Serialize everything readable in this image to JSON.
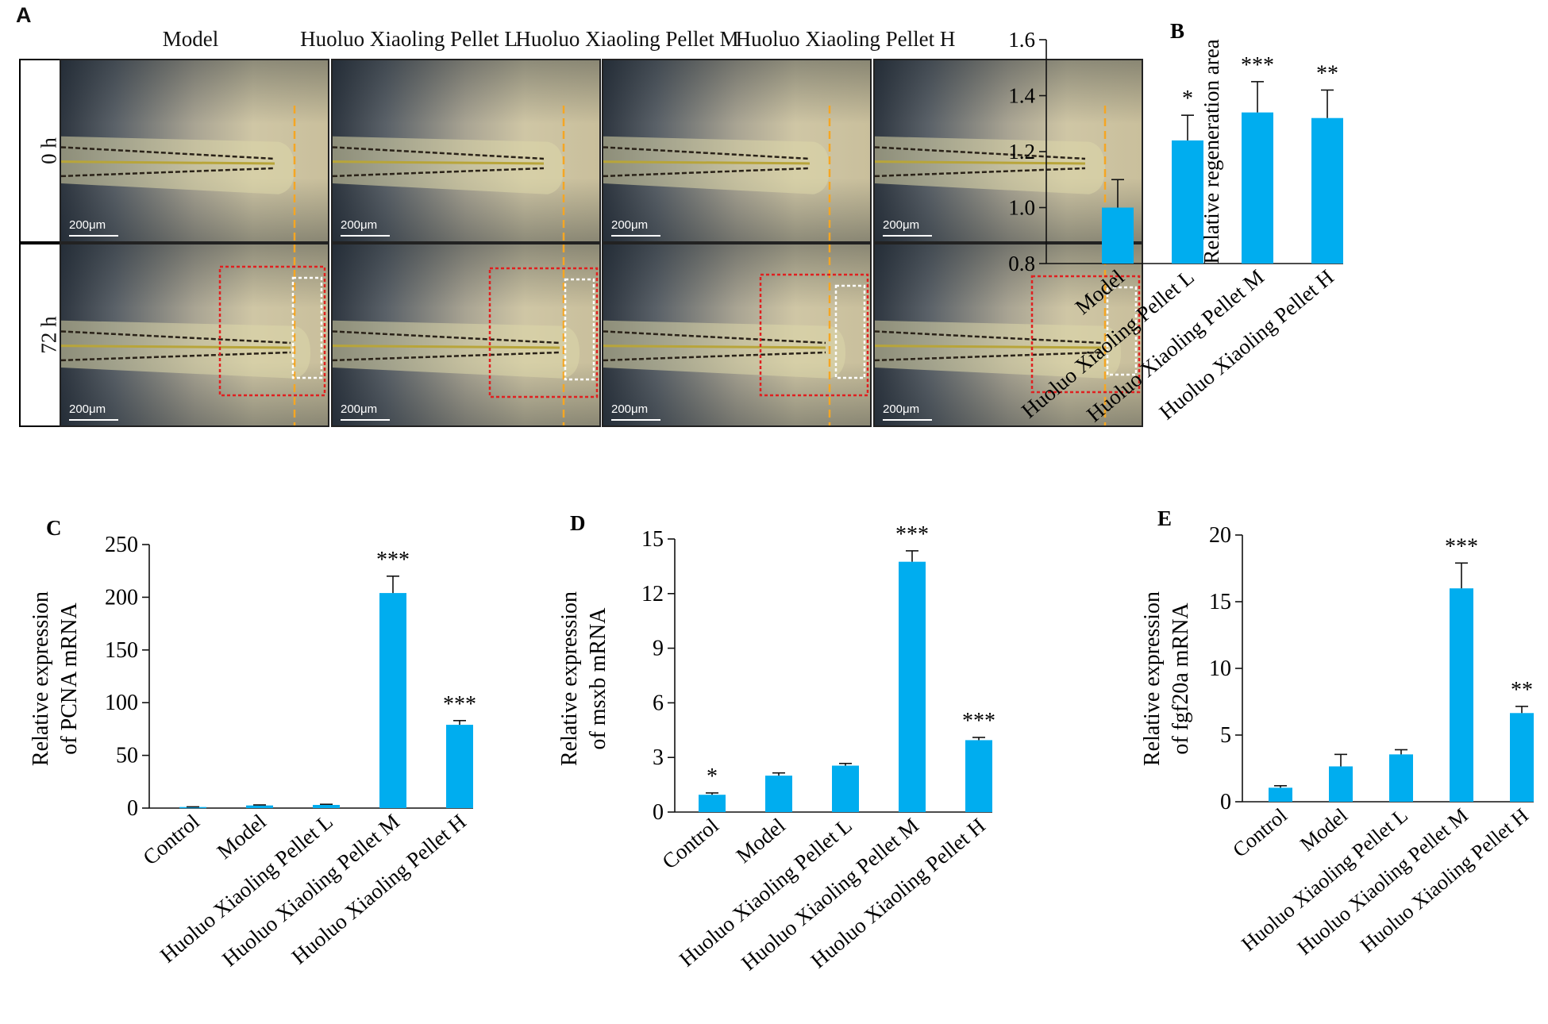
{
  "panel_a": {
    "letter": "A",
    "columns": [
      "Model",
      "Huoluo Xiaoling Pellet L",
      "Huoluo Xiaoling Pellet M",
      "Huoluo Xiaoling Pellet H"
    ],
    "rows": [
      "0 h",
      "72 h"
    ],
    "scale_label": "200μm",
    "colors": {
      "cut_line": "#f5a623",
      "region_box": "#e02020",
      "blastema_box": "#ffffff"
    }
  },
  "chart_data": [
    {
      "id": "B",
      "letter": "B",
      "type": "bar",
      "categories": [
        "Model",
        "Huoluo Xiaoling Pellet L",
        "Huoluo Xiaoling Pellet M",
        "Huoluo Xiaoling Pellet H"
      ],
      "values": [
        1.0,
        1.24,
        1.34,
        1.32
      ],
      "errors": [
        0.1,
        0.09,
        0.11,
        0.1
      ],
      "significance": [
        "",
        "*",
        "***",
        "**"
      ],
      "ylabel": "Relative regeneration area",
      "xlabel": "",
      "ylim": [
        0.8,
        1.6
      ],
      "yticks": [
        "0.8",
        "1.0",
        "1.2",
        "1.4",
        "1.6"
      ],
      "bar_color": "#00adef"
    },
    {
      "id": "C",
      "letter": "C",
      "type": "bar",
      "categories": [
        "Control",
        "Model",
        "Huoluo Xiaoling Pellet L",
        "Huoluo Xiaoling Pellet M",
        "Huoluo Xiaoling Pellet H"
      ],
      "values": [
        1.0,
        2.5,
        3.0,
        204,
        79
      ],
      "errors": [
        0.2,
        0.5,
        0.6,
        16,
        4
      ],
      "significance": [
        "",
        "",
        "",
        "***",
        "***"
      ],
      "ylabel": [
        "Relative expression",
        "of PCNA mRNA"
      ],
      "xlabel": "",
      "ylim": [
        0,
        250
      ],
      "yticks": [
        "0",
        "50",
        "100",
        "150",
        "200",
        "250"
      ],
      "bar_color": "#00adef"
    },
    {
      "id": "D",
      "letter": "D",
      "type": "bar",
      "categories": [
        "Control",
        "Model",
        "Huoluo Xiaoling Pellet L",
        "Huoluo Xiaoling Pellet M",
        "Huoluo Xiaoling Pellet H"
      ],
      "values": [
        0.95,
        2.0,
        2.55,
        13.75,
        3.95
      ],
      "errors": [
        0.1,
        0.15,
        0.12,
        0.6,
        0.15
      ],
      "significance": [
        "*",
        "",
        "",
        "***",
        "***"
      ],
      "ylabel": [
        "Relative expression",
        "of msxb mRNA"
      ],
      "xlabel": "",
      "ylim": [
        0,
        15
      ],
      "yticks": [
        "0",
        "3",
        "6",
        "9",
        "12",
        "15"
      ],
      "bar_color": "#00adef"
    },
    {
      "id": "E",
      "letter": "E",
      "type": "bar",
      "categories": [
        "Control",
        "Model",
        "Huoluo Xiaoling Pellet L",
        "Huoluo Xiaoling Pellet M",
        "Huoluo Xiaoling Pellet H"
      ],
      "values": [
        1.05,
        2.65,
        3.55,
        16.0,
        6.65
      ],
      "errors": [
        0.15,
        0.9,
        0.35,
        1.9,
        0.5
      ],
      "significance": [
        "",
        "",
        "",
        "***",
        "**"
      ],
      "ylabel": [
        "Relative expression",
        "of fgf20a mRNA"
      ],
      "xlabel": "",
      "ylim": [
        0,
        20
      ],
      "yticks": [
        "0",
        "5",
        "10",
        "15",
        "20"
      ],
      "bar_color": "#00adef"
    }
  ]
}
